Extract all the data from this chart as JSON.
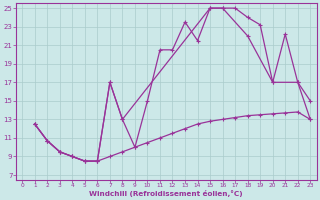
{
  "xlabel": "Windchill (Refroidissement éolien,°C)",
  "xlim_min": -0.5,
  "xlim_max": 23.5,
  "ylim_min": 6.5,
  "ylim_max": 25.5,
  "xticks": [
    0,
    1,
    2,
    3,
    4,
    5,
    6,
    7,
    8,
    9,
    10,
    11,
    12,
    13,
    14,
    15,
    16,
    17,
    18,
    19,
    20,
    21,
    22,
    23
  ],
  "yticks": [
    7,
    9,
    11,
    13,
    15,
    17,
    19,
    21,
    23,
    25
  ],
  "bg_color": "#cce8e8",
  "line_color": "#993399",
  "grid_color": "#aacccc",
  "line1_x": [
    1,
    2,
    3,
    4,
    5,
    6,
    7,
    8,
    9,
    10,
    11,
    12,
    13,
    14,
    15,
    16,
    17,
    18,
    19,
    20,
    21,
    22,
    23
  ],
  "line1_y": [
    12.5,
    10.7,
    9.5,
    9.0,
    8.5,
    8.5,
    9.0,
    9.5,
    10.0,
    10.5,
    11.0,
    11.5,
    12.0,
    12.5,
    12.8,
    13.0,
    13.2,
    13.4,
    13.5,
    13.6,
    13.7,
    13.8,
    13.0
  ],
  "line2_x": [
    1,
    2,
    3,
    4,
    5,
    6,
    7,
    8,
    9,
    10,
    11,
    12,
    13,
    14,
    15,
    16,
    17,
    18,
    19,
    20,
    21,
    22,
    23
  ],
  "line2_y": [
    12.5,
    10.7,
    9.5,
    9.0,
    8.5,
    8.5,
    17.0,
    13.0,
    10.0,
    15.0,
    20.5,
    20.5,
    23.5,
    21.5,
    25.0,
    25.0,
    25.0,
    24.0,
    23.2,
    17.0,
    22.2,
    17.0,
    15.0
  ],
  "line3_x": [
    1,
    2,
    3,
    4,
    5,
    6,
    7,
    8,
    15,
    16,
    18,
    20,
    22,
    23
  ],
  "line3_y": [
    12.5,
    10.7,
    9.5,
    9.0,
    8.5,
    8.5,
    17.0,
    13.0,
    25.0,
    25.0,
    22.0,
    17.0,
    17.0,
    13.0
  ]
}
